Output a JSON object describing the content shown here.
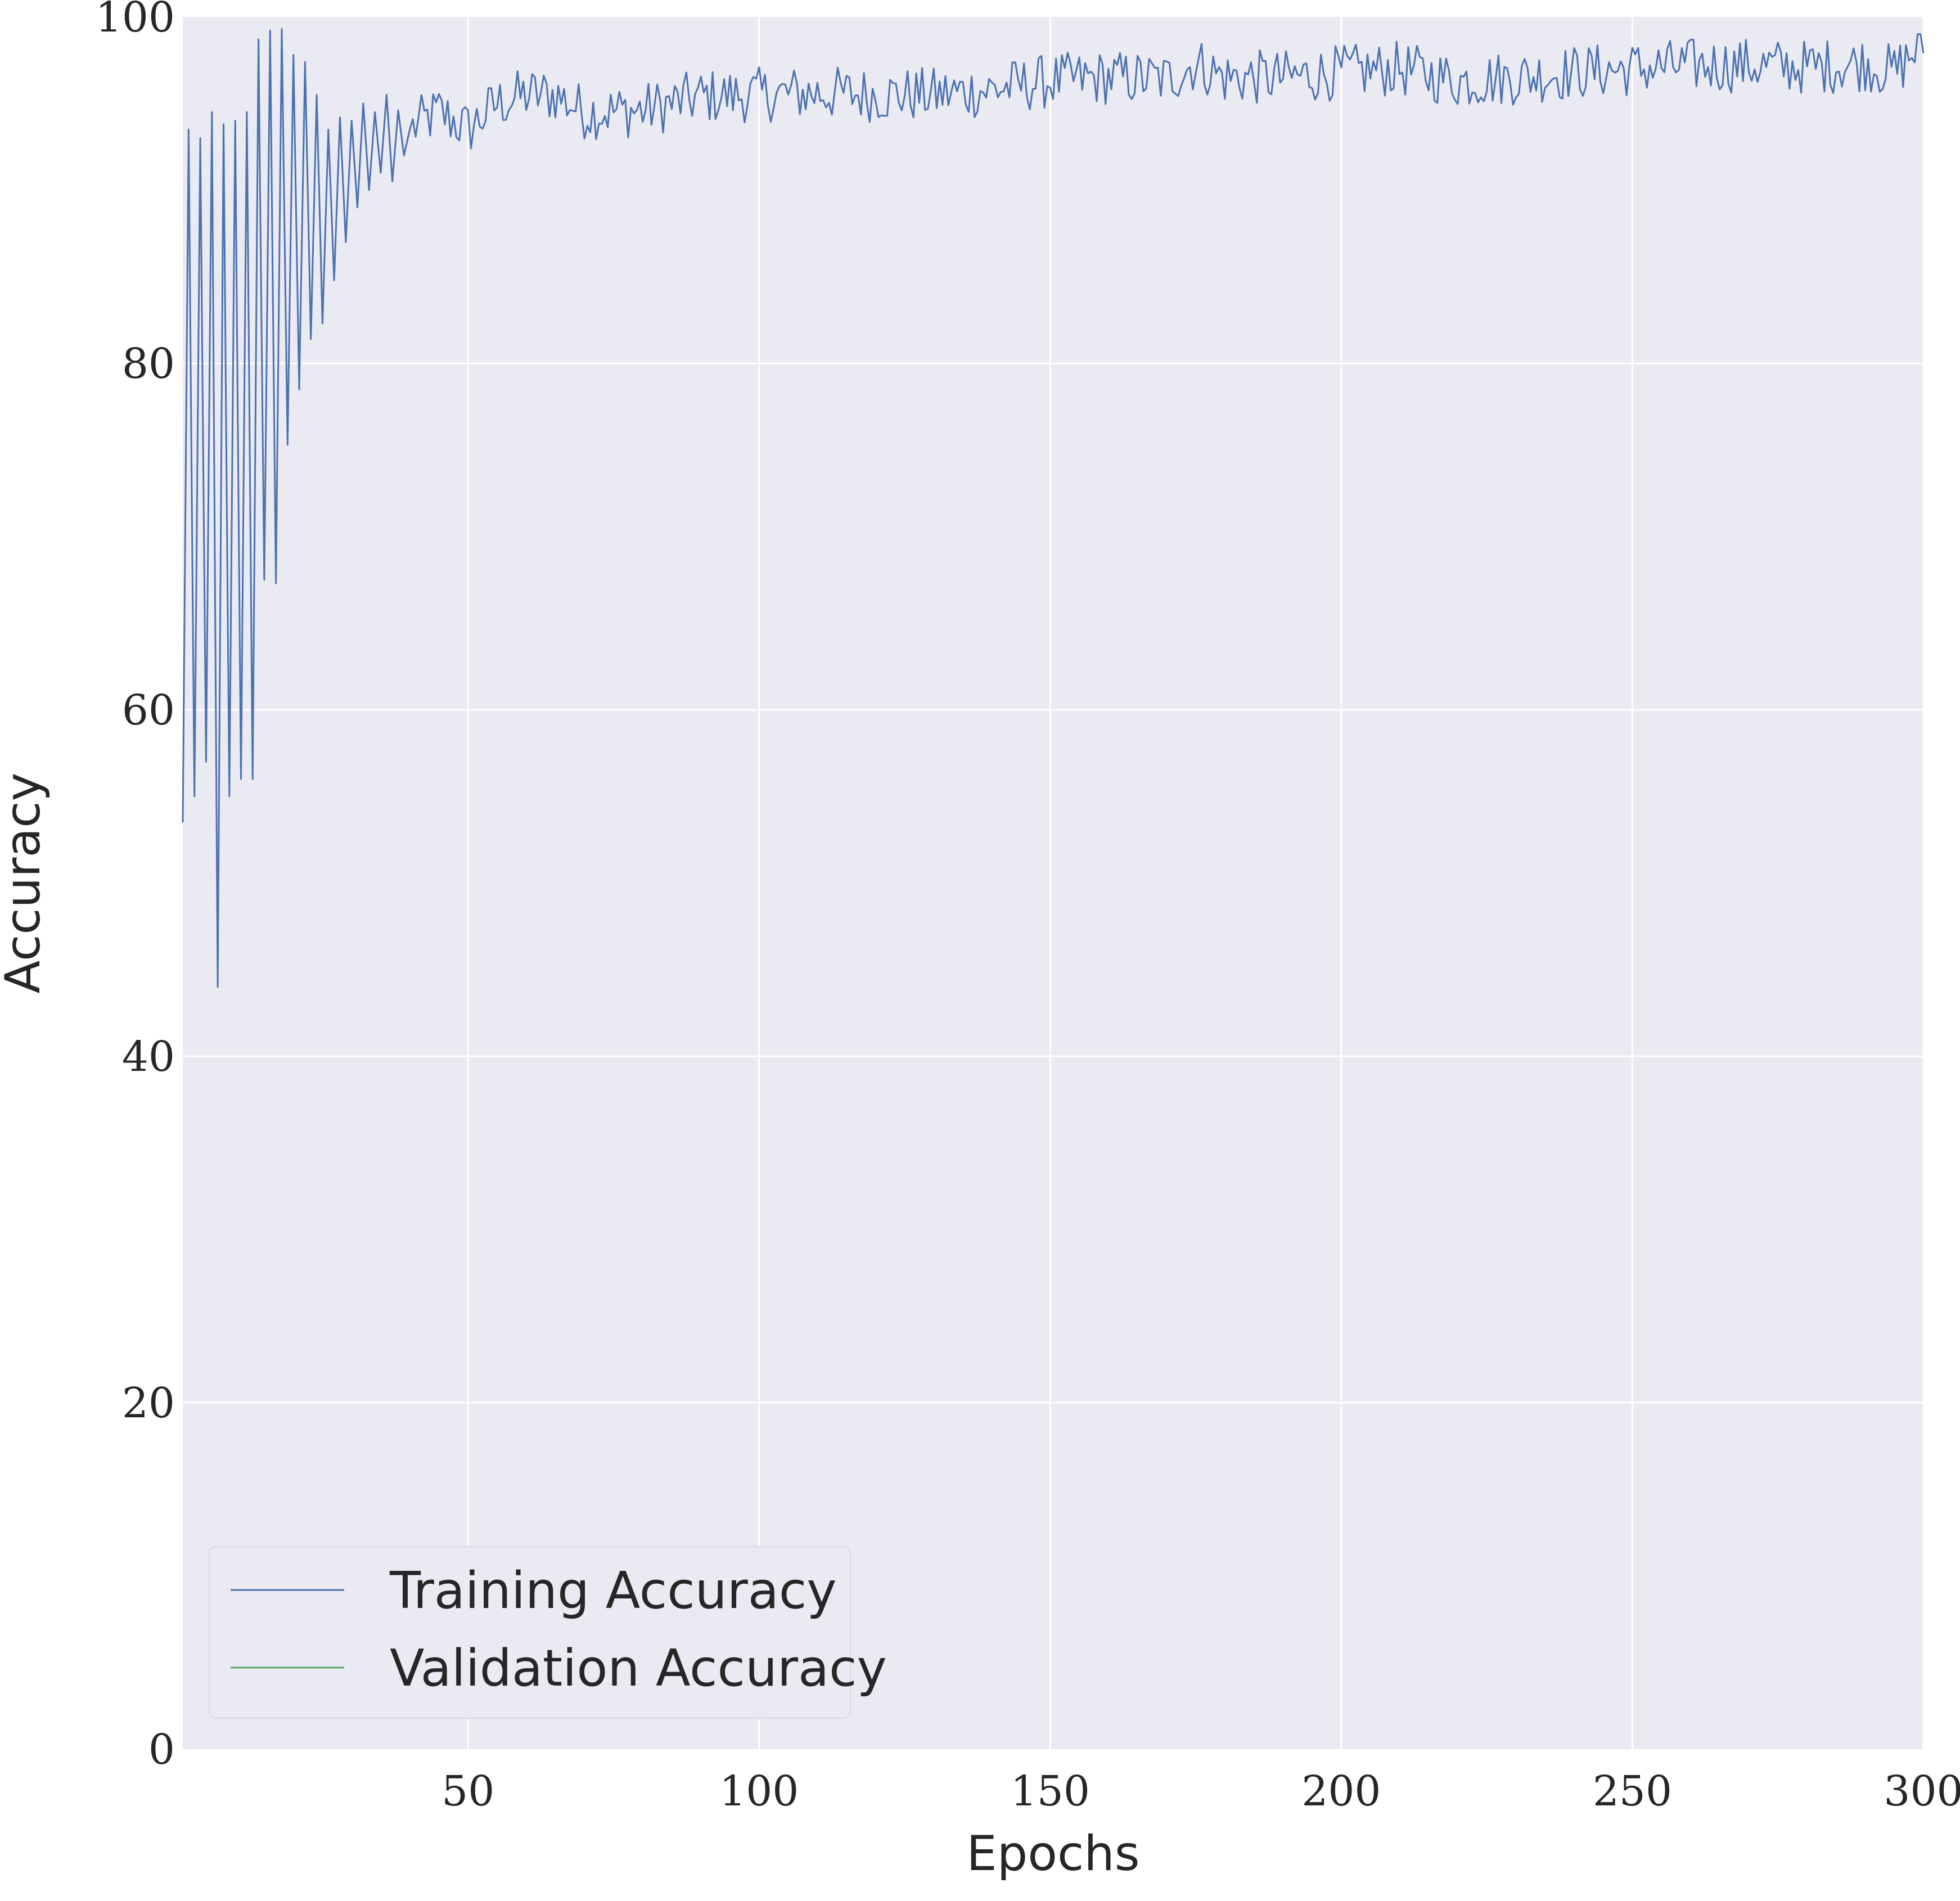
{
  "chart_data": {
    "type": "line",
    "title": "",
    "xlabel": "Epochs",
    "ylabel": "Accuracy",
    "xlim": [
      1,
      300
    ],
    "ylim": [
      0,
      100
    ],
    "xticks": [
      50,
      100,
      150,
      200,
      250,
      300
    ],
    "yticks": [
      0,
      20,
      40,
      60,
      80,
      100
    ],
    "grid": true,
    "background_color": "#eaeaf2",
    "grid_color": "#ffffff",
    "legend_placement": "lower-left",
    "series": [
      {
        "name": "Training Accuracy",
        "color": "#4c72b0",
        "sample_epochs": [
          1,
          2,
          3,
          4,
          5,
          6,
          7,
          8,
          9,
          10,
          11,
          12,
          13,
          14,
          15,
          16,
          17,
          18,
          19,
          20,
          21,
          22,
          23,
          24,
          25,
          26,
          27,
          28,
          29,
          30,
          31,
          32,
          33,
          34,
          35,
          36,
          37,
          38,
          39,
          40,
          45,
          50,
          55,
          60,
          65,
          70,
          80,
          90,
          100,
          110,
          120,
          130,
          140,
          150,
          160,
          170,
          175,
          180,
          190,
          200,
          210,
          220,
          230,
          240,
          250,
          260,
          270,
          280,
          290,
          295,
          300
        ],
        "values": [
          53.5,
          93.5,
          55,
          93,
          57,
          94.5,
          44,
          93.8,
          55,
          94,
          56,
          94.5,
          56,
          98.7,
          67.5,
          99.2,
          67.3,
          99.3,
          75.3,
          97.8,
          78.5,
          97.4,
          81.4,
          95.5,
          82.3,
          93.5,
          84.8,
          94.2,
          87,
          94,
          89,
          95,
          90,
          94.5,
          91,
          95.5,
          90.5,
          94.6,
          92,
          93.5,
          94.5,
          93.5,
          95,
          95.5,
          95.5,
          94.5,
          94.6,
          95.4,
          95.5,
          95.6,
          95.5,
          95.5,
          95.8,
          96.3,
          96.5,
          96.4,
          97.3,
          96.5,
          96.5,
          96.8,
          97,
          96.3,
          96.5,
          96.8,
          97,
          97.2,
          97.2,
          97.1,
          97.3,
          96.8,
          98.5
        ],
        "noise_amplitude_late": 1.6
      },
      {
        "name": "Validation Accuracy",
        "color": "#55a868",
        "values": []
      }
    ]
  }
}
